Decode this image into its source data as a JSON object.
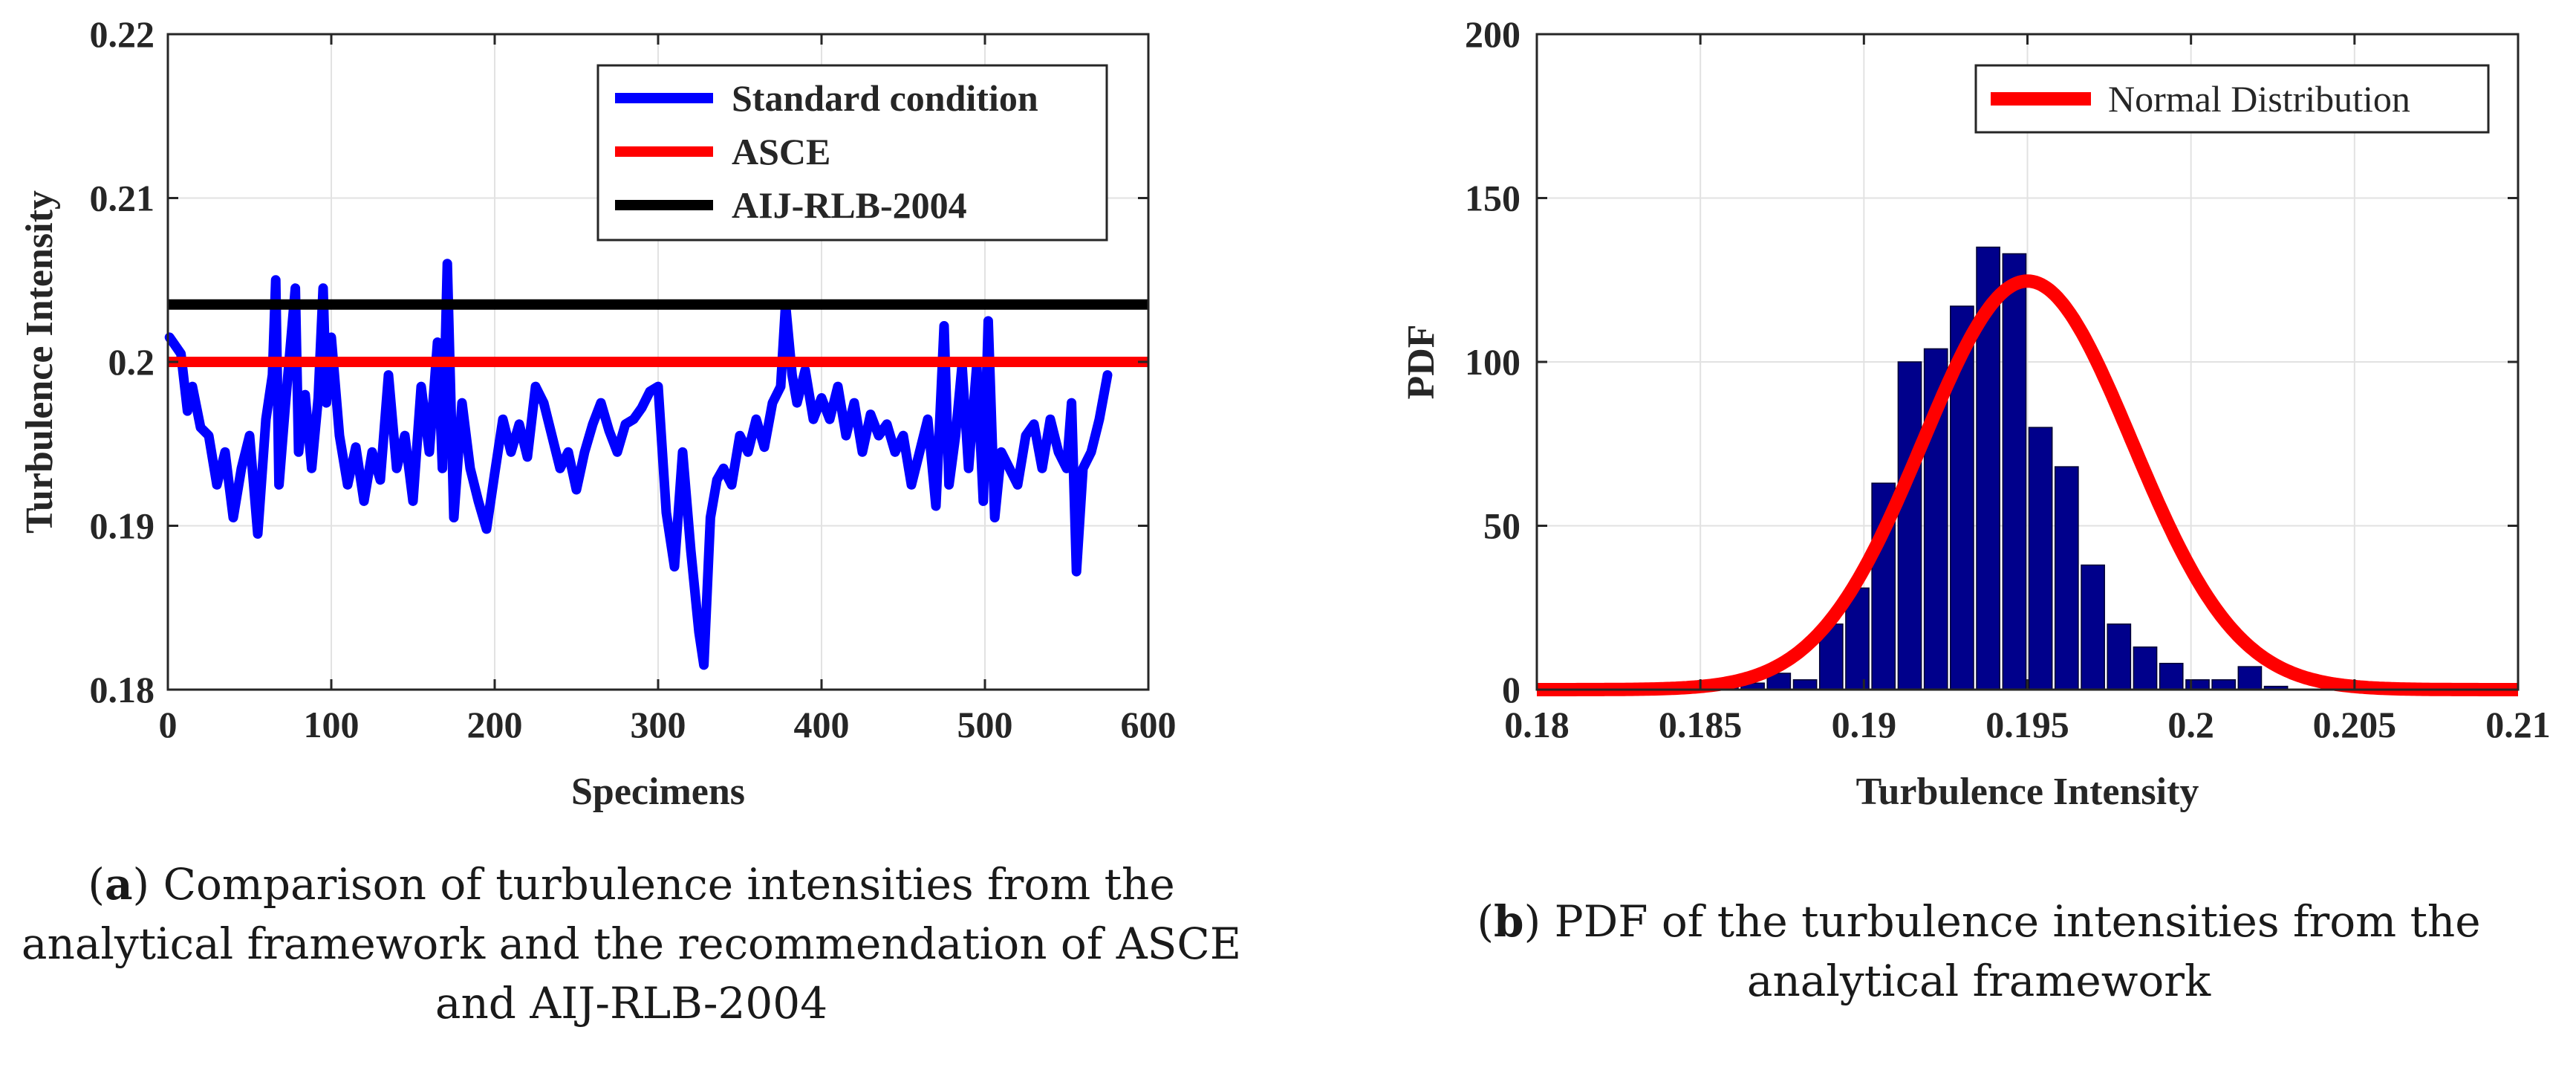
{
  "chart_data": [
    {
      "id": "a",
      "type": "line",
      "xlabel": "Specimens",
      "ylabel": "Turbulence Intensity",
      "xlim": [
        0,
        600
      ],
      "ylim": [
        0.18,
        0.22
      ],
      "xticks": [
        0,
        100,
        200,
        300,
        400,
        500,
        600
      ],
      "yticks": [
        0.18,
        0.19,
        0.2,
        0.21,
        0.22
      ],
      "ytick_labels": [
        "0.18",
        "0.19",
        "0.2",
        "0.21",
        "0.22"
      ],
      "grid": true,
      "legend_position": "top-right",
      "series": [
        {
          "name": "Standard condition",
          "color": "#0000ff",
          "x": [
            1,
            8,
            12,
            15,
            20,
            25,
            30,
            35,
            40,
            45,
            50,
            55,
            60,
            64,
            66,
            68,
            72,
            78,
            80,
            84,
            88,
            92,
            95,
            97,
            100,
            105,
            110,
            115,
            120,
            125,
            130,
            135,
            140,
            145,
            150,
            155,
            160,
            165,
            168,
            171,
            175,
            180,
            185,
            190,
            195,
            200,
            205,
            210,
            215,
            220,
            225,
            230,
            235,
            240,
            245,
            250,
            255,
            260,
            265,
            270,
            275,
            280,
            285,
            290,
            295,
            300,
            305,
            310,
            315,
            320,
            325,
            328,
            332,
            336,
            340,
            345,
            350,
            355,
            360,
            365,
            370,
            375,
            378,
            382,
            385,
            390,
            395,
            400,
            405,
            410,
            415,
            420,
            425,
            430,
            435,
            440,
            445,
            450,
            455,
            460,
            465,
            470,
            475,
            478,
            482,
            486,
            490,
            495,
            499,
            502,
            506,
            510,
            515,
            520,
            525,
            530,
            535,
            540,
            545,
            550,
            553,
            556,
            560,
            565,
            570,
            575
          ],
          "values": [
            0.2015,
            0.2005,
            0.197,
            0.1985,
            0.196,
            0.1955,
            0.1925,
            0.1945,
            0.1905,
            0.1935,
            0.1955,
            0.1895,
            0.1965,
            0.1992,
            0.205,
            0.1925,
            0.1975,
            0.2045,
            0.1945,
            0.198,
            0.1935,
            0.1978,
            0.2045,
            0.1975,
            0.2015,
            0.1955,
            0.1925,
            0.1948,
            0.1915,
            0.1945,
            0.1928,
            0.1992,
            0.1935,
            0.1955,
            0.1915,
            0.1985,
            0.1945,
            0.2012,
            0.1935,
            0.206,
            0.1905,
            0.1975,
            0.1935,
            0.1915,
            0.1898,
            0.1932,
            0.1965,
            0.1945,
            0.1962,
            0.1942,
            0.1985,
            0.1975,
            0.1955,
            0.1935,
            0.1945,
            0.1922,
            0.1945,
            0.1962,
            0.1975,
            0.1958,
            0.1945,
            0.1962,
            0.1965,
            0.1972,
            0.1982,
            0.1985,
            0.1908,
            0.1875,
            0.1945,
            0.1885,
            0.1835,
            0.1815,
            0.1905,
            0.1928,
            0.1935,
            0.1925,
            0.1955,
            0.1945,
            0.1965,
            0.1948,
            0.1975,
            0.1985,
            0.2035,
            0.1992,
            0.1975,
            0.1995,
            0.1965,
            0.1978,
            0.1965,
            0.1985,
            0.1955,
            0.1975,
            0.1945,
            0.1968,
            0.1955,
            0.1962,
            0.1945,
            0.1955,
            0.1925,
            0.1945,
            0.1965,
            0.1912,
            0.2022,
            0.1925,
            0.1955,
            0.1998,
            0.1935,
            0.1998,
            0.1915,
            0.2025,
            0.1905,
            0.1945,
            0.1935,
            0.1925,
            0.1955,
            0.1962,
            0.1935,
            0.1965,
            0.1945,
            0.1935,
            0.1975,
            0.1872,
            0.1935,
            0.1945,
            0.1965,
            0.1992
          ]
        },
        {
          "name": "ASCE",
          "color": "#ff0000",
          "x": [
            0,
            600
          ],
          "values": [
            0.2,
            0.2
          ]
        },
        {
          "name": "AIJ-RLB-2004",
          "color": "#000000",
          "x": [
            0,
            600
          ],
          "values": [
            0.2035,
            0.2035
          ]
        }
      ]
    },
    {
      "id": "b",
      "type": "bar",
      "xlabel": "Turbulence Intensity",
      "ylabel": "PDF",
      "xlim": [
        0.18,
        0.21
      ],
      "ylim": [
        0,
        200
      ],
      "xticks": [
        0.18,
        0.185,
        0.19,
        0.195,
        0.2,
        0.205,
        0.21
      ],
      "xtick_labels": [
        "0.18",
        "0.185",
        "0.19",
        "0.195",
        "0.2",
        "0.205",
        "0.21"
      ],
      "yticks": [
        0,
        50,
        100,
        150,
        200
      ],
      "grid": true,
      "legend_position": "top-right",
      "bar_color": "#00008b",
      "bin_width": 0.0008,
      "bin_centers": [
        0.1858,
        0.1866,
        0.1874,
        0.1882,
        0.189,
        0.1898,
        0.1906,
        0.1914,
        0.1922,
        0.193,
        0.1938,
        0.1946,
        0.1954,
        0.1962,
        0.197,
        0.1978,
        0.1986,
        0.1994,
        0.2002,
        0.201,
        0.2018,
        0.2026,
        0.2034,
        0.2042
      ],
      "values": [
        3,
        2,
        5,
        3,
        20,
        31,
        63,
        100,
        104,
        117,
        135,
        133,
        80,
        68,
        38,
        20,
        13,
        8,
        3,
        3,
        7,
        1,
        0,
        0
      ],
      "curve": {
        "name": "Normal Distribution",
        "color": "#ff0000",
        "mean": 0.195,
        "std": 0.0032
      }
    }
  ],
  "captions": {
    "a": {
      "label": "a",
      "text": " Comparison of turbulence intensities from the analytical framework and the recommendation of ASCE and AIJ-RLB-2004"
    },
    "b": {
      "label": "b",
      "text": " PDF of the turbulence intensities from the analytical framework"
    }
  }
}
